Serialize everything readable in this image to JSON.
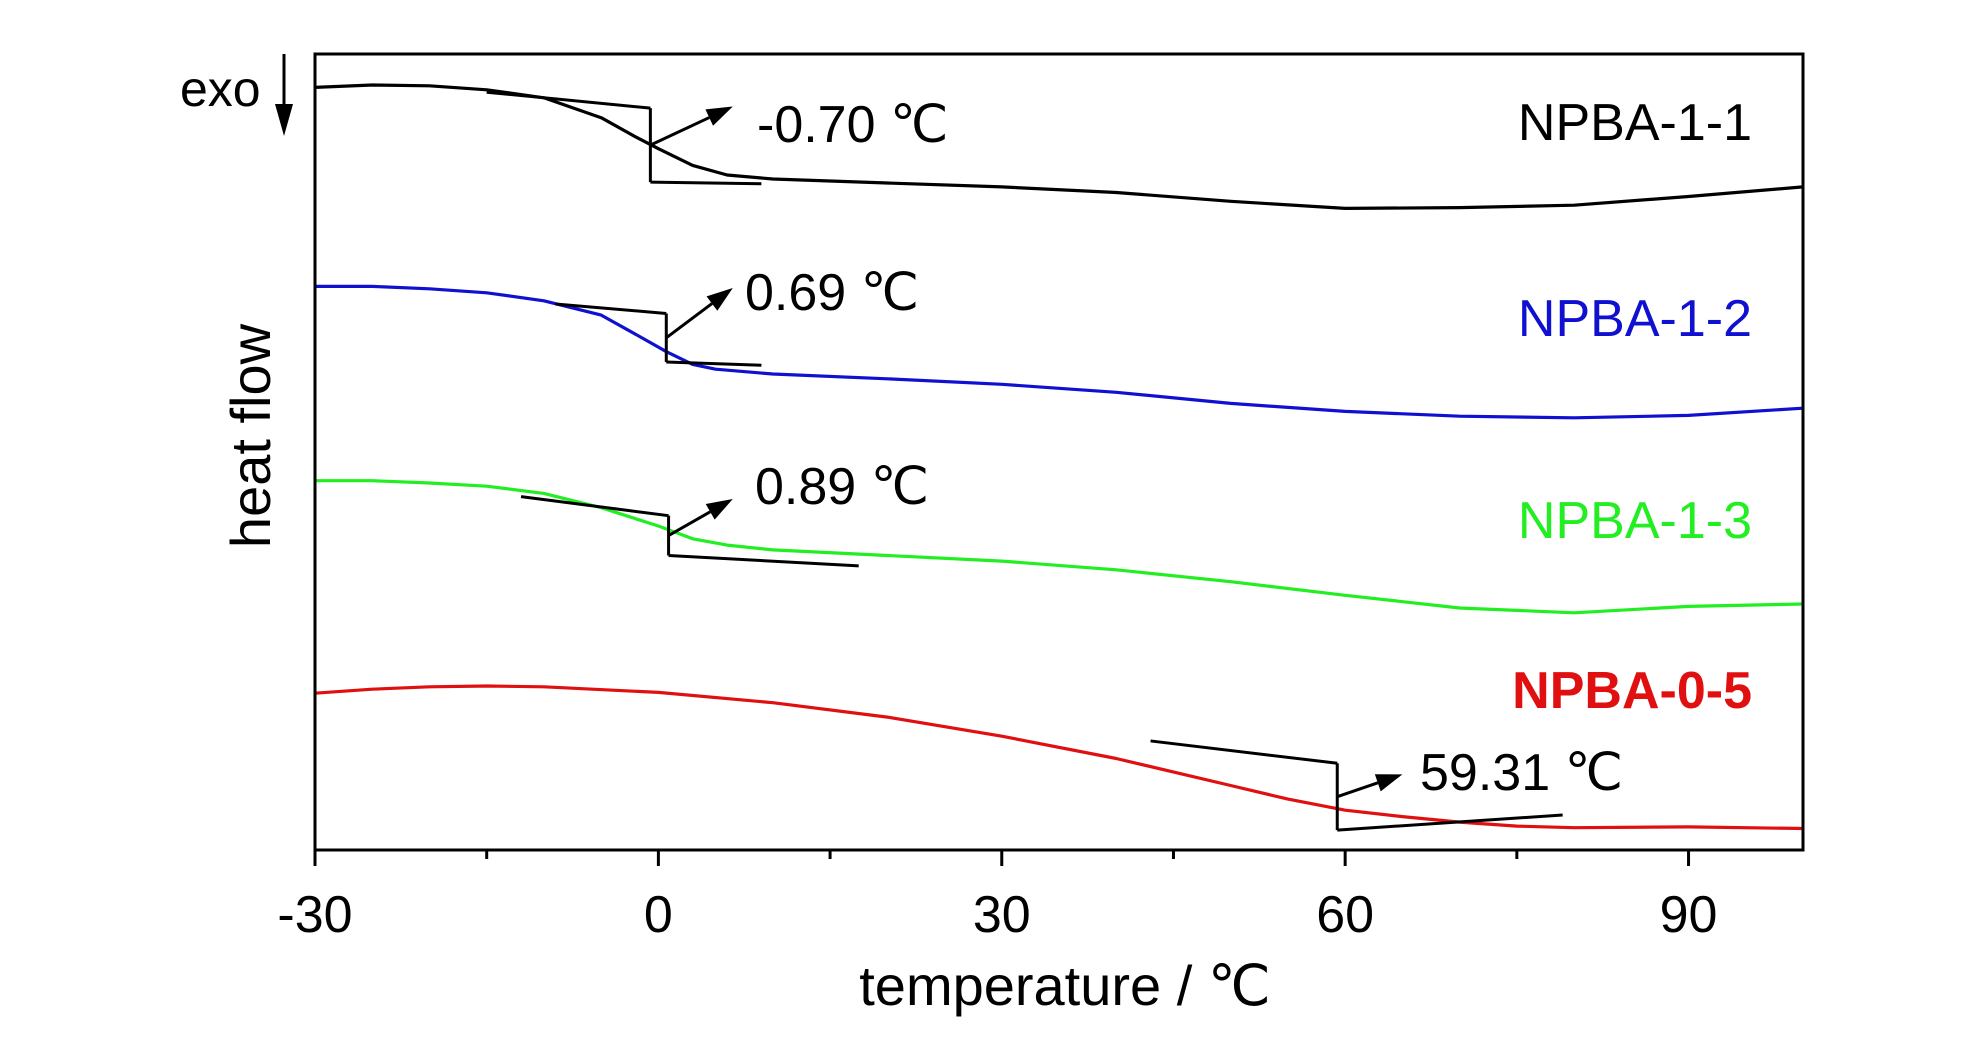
{
  "chart_data": {
    "type": "line",
    "title": "",
    "xlabel": "temperature / ℃",
    "ylabel": "heat flow",
    "xlim": [
      -30,
      100
    ],
    "ylim": [
      0,
      1
    ],
    "xticks": [
      -30,
      0,
      30,
      60,
      90
    ],
    "xtick_labels": [
      "-30",
      "0",
      "30",
      "60",
      "90"
    ],
    "grid": false,
    "exo_label": "exo",
    "series": [
      {
        "name": "NPBA-1-1",
        "color": "#000000",
        "label_bold": false,
        "points": [
          [
            -30,
            0.958
          ],
          [
            -25,
            0.961
          ],
          [
            -20,
            0.96
          ],
          [
            -15,
            0.955
          ],
          [
            -10,
            0.945
          ],
          [
            -5,
            0.92
          ],
          [
            -2,
            0.896
          ],
          [
            0,
            0.881
          ],
          [
            3,
            0.86
          ],
          [
            6,
            0.848
          ],
          [
            10,
            0.843
          ],
          [
            20,
            0.838
          ],
          [
            30,
            0.833
          ],
          [
            40,
            0.826
          ],
          [
            50,
            0.815
          ],
          [
            60,
            0.806
          ],
          [
            70,
            0.807
          ],
          [
            80,
            0.81
          ],
          [
            90,
            0.821
          ],
          [
            100,
            0.833
          ]
        ],
        "tg_value": -0.7,
        "tg_label": "-0.70 ℃",
        "tangent_upper": [
          [
            -15,
            0.952
          ],
          [
            -0.7,
            0.932
          ]
        ],
        "tangent_lower": [
          [
            -0.7,
            0.839
          ],
          [
            9,
            0.837
          ]
        ],
        "arrow_to": [
          6.5,
          0.934
        ]
      },
      {
        "name": "NPBA-1-2",
        "color": "#1010d0",
        "label_bold": false,
        "points": [
          [
            -30,
            0.708
          ],
          [
            -25,
            0.708
          ],
          [
            -20,
            0.705
          ],
          [
            -15,
            0.7
          ],
          [
            -10,
            0.69
          ],
          [
            -5,
            0.672
          ],
          [
            -1,
            0.64
          ],
          [
            0.7,
            0.626
          ],
          [
            3,
            0.61
          ],
          [
            5,
            0.604
          ],
          [
            10,
            0.598
          ],
          [
            20,
            0.592
          ],
          [
            30,
            0.585
          ],
          [
            40,
            0.575
          ],
          [
            50,
            0.561
          ],
          [
            60,
            0.551
          ],
          [
            70,
            0.545
          ],
          [
            80,
            0.543
          ],
          [
            90,
            0.546
          ],
          [
            100,
            0.555
          ]
        ],
        "tg_value": 0.69,
        "tg_label": "0.69 ℃",
        "tangent_upper": [
          [
            -9,
            0.686
          ],
          [
            0.69,
            0.674
          ]
        ],
        "tangent_lower": [
          [
            0.69,
            0.613
          ],
          [
            9,
            0.609
          ]
        ],
        "arrow_to": [
          6.5,
          0.706
        ]
      },
      {
        "name": "NPBA-1-3",
        "color": "#22ee22",
        "label_bold": false,
        "points": [
          [
            -30,
            0.464
          ],
          [
            -25,
            0.464
          ],
          [
            -20,
            0.461
          ],
          [
            -15,
            0.457
          ],
          [
            -10,
            0.448
          ],
          [
            -5,
            0.43
          ],
          [
            0,
            0.407
          ],
          [
            3,
            0.391
          ],
          [
            6,
            0.383
          ],
          [
            10,
            0.377
          ],
          [
            20,
            0.37
          ],
          [
            30,
            0.363
          ],
          [
            40,
            0.352
          ],
          [
            50,
            0.337
          ],
          [
            60,
            0.32
          ],
          [
            70,
            0.304
          ],
          [
            80,
            0.298
          ],
          [
            90,
            0.306
          ],
          [
            100,
            0.309
          ]
        ],
        "tg_value": 0.89,
        "tg_label": "0.89 ℃",
        "tangent_upper": [
          [
            -12,
            0.444
          ],
          [
            0.89,
            0.42
          ]
        ],
        "tangent_lower": [
          [
            0.89,
            0.37
          ],
          [
            17.5,
            0.357
          ]
        ],
        "arrow_to": [
          6.5,
          0.441
        ]
      },
      {
        "name": "NPBA-0-5",
        "color": "#e01010",
        "label_bold": true,
        "points": [
          [
            -30,
            0.197
          ],
          [
            -25,
            0.202
          ],
          [
            -20,
            0.205
          ],
          [
            -15,
            0.206
          ],
          [
            -10,
            0.205
          ],
          [
            0,
            0.198
          ],
          [
            10,
            0.185
          ],
          [
            20,
            0.167
          ],
          [
            30,
            0.143
          ],
          [
            40,
            0.115
          ],
          [
            50,
            0.081
          ],
          [
            55,
            0.064
          ],
          [
            60,
            0.05
          ],
          [
            65,
            0.042
          ],
          [
            70,
            0.035
          ],
          [
            75,
            0.03
          ],
          [
            80,
            0.028
          ],
          [
            90,
            0.029
          ],
          [
            100,
            0.027
          ]
        ],
        "tg_value": 59.31,
        "tg_label": "59.31 ℃",
        "tangent_upper": [
          [
            43,
            0.137
          ],
          [
            59.31,
            0.109
          ]
        ],
        "tangent_lower": [
          [
            59.31,
            0.025
          ],
          [
            79,
            0.044
          ]
        ],
        "arrow_to": [
          65,
          0.095
        ]
      }
    ]
  }
}
